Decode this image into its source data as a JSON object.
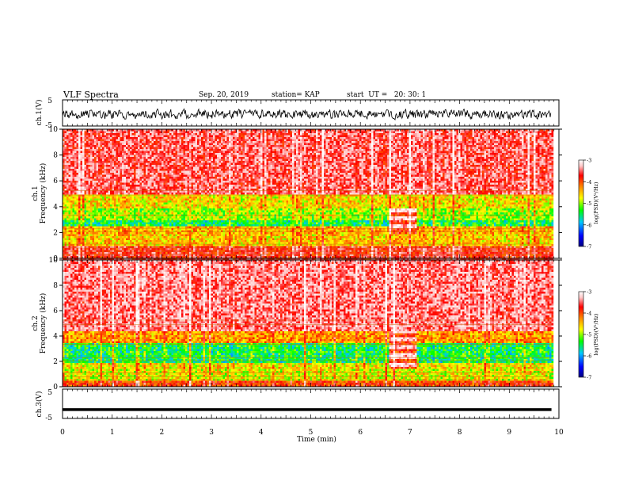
{
  "header": {
    "title": "VLF Spectra",
    "date": "Sep. 20, 2019",
    "station": "station= KAP",
    "start_ut": "start  UT =   20: 30: 1"
  },
  "chart_data": [
    {
      "type": "line",
      "panel": "ch1-waveform",
      "ylabel": "ch.1(V)",
      "ylim": [
        -5,
        5
      ],
      "yticks": [
        "5",
        "-5"
      ],
      "trace": "noisy waveform centred near -0.5 V, amplitude about +-2 V",
      "xlim": [
        0,
        9.85
      ]
    },
    {
      "type": "heatmap",
      "panel": "ch1-spectrogram",
      "ylabel_channel": "ch.1",
      "ylabel": "Frequency (kHz)",
      "ylim": [
        0,
        10
      ],
      "yticks": [
        "0",
        "2",
        "4",
        "6",
        "8",
        "10"
      ],
      "xlim": [
        0,
        9.85
      ],
      "colorbar": {
        "label": "log(PSD)(V²/Hz)",
        "range": [
          -7,
          -3
        ],
        "ticks": [
          "-3",
          "-4",
          "-5",
          "-6",
          "-7"
        ]
      },
      "bands": [
        {
          "from_khz": 5.0,
          "to_khz": 10.0,
          "level": -3.8
        },
        {
          "from_khz": 4.0,
          "to_khz": 5.0,
          "level": -4.9
        },
        {
          "from_khz": 3.0,
          "to_khz": 4.0,
          "level": -5.2
        },
        {
          "from_khz": 2.5,
          "to_khz": 3.0,
          "level": -5.6
        },
        {
          "from_khz": 2.0,
          "to_khz": 2.5,
          "level": -4.7
        },
        {
          "from_khz": 1.0,
          "to_khz": 2.0,
          "level": -4.8
        },
        {
          "from_khz": 0.0,
          "to_khz": 1.0,
          "level": -4.0
        }
      ],
      "event": {
        "t_start_min": 6.55,
        "t_end_min": 7.1,
        "from_khz": 2.0,
        "to_khz": 4.0,
        "level": -3.9
      }
    },
    {
      "type": "heatmap",
      "panel": "ch2-spectrogram",
      "ylabel_channel": "ch.2",
      "ylabel": "Frequency (kHz)",
      "ylim": [
        0,
        10
      ],
      "yticks": [
        "0",
        "2",
        "4",
        "6",
        "8",
        "10"
      ],
      "xlim": [
        0,
        9.85
      ],
      "colorbar": {
        "label": "log(PSD)(V²/Hz)",
        "range": [
          -7,
          -3
        ],
        "ticks": [
          "-3",
          "-4",
          "-5",
          "-6",
          "-7"
        ]
      },
      "bands": [
        {
          "from_khz": 4.5,
          "to_khz": 10.0,
          "level": -3.7
        },
        {
          "from_khz": 3.5,
          "to_khz": 4.5,
          "level": -4.6
        },
        {
          "from_khz": 2.0,
          "to_khz": 3.5,
          "level": -5.6
        },
        {
          "from_khz": 1.5,
          "to_khz": 2.0,
          "level": -4.9
        },
        {
          "from_khz": 0.5,
          "to_khz": 1.5,
          "level": -5.0
        },
        {
          "from_khz": 0.0,
          "to_khz": 0.5,
          "level": -4.2
        }
      ],
      "event": {
        "t_start_min": 6.55,
        "t_end_min": 7.1,
        "from_khz": 1.5,
        "to_khz": 4.5,
        "level": -3.9
      }
    },
    {
      "type": "line",
      "panel": "ch3-waveform",
      "ylabel": "ch.3(V)",
      "ylim": [
        -5,
        5
      ],
      "yticks": [
        "5",
        "-5"
      ],
      "trace": "flat thick line near -2 V",
      "value_v": -2,
      "xlim": [
        0,
        9.85
      ]
    }
  ],
  "time_axis": {
    "xlabel": "Time (min)",
    "xlim": [
      0,
      10
    ],
    "ticks": [
      "0",
      "1",
      "2",
      "3",
      "4",
      "5",
      "6",
      "7",
      "8",
      "9",
      "10"
    ]
  },
  "colors": {
    "colormap": [
      "#000080",
      "#0000ff",
      "#00c8ff",
      "#00ff00",
      "#ffff00",
      "#ff8000",
      "#ff0000",
      "#ffc8c8",
      "#ffffff"
    ]
  }
}
